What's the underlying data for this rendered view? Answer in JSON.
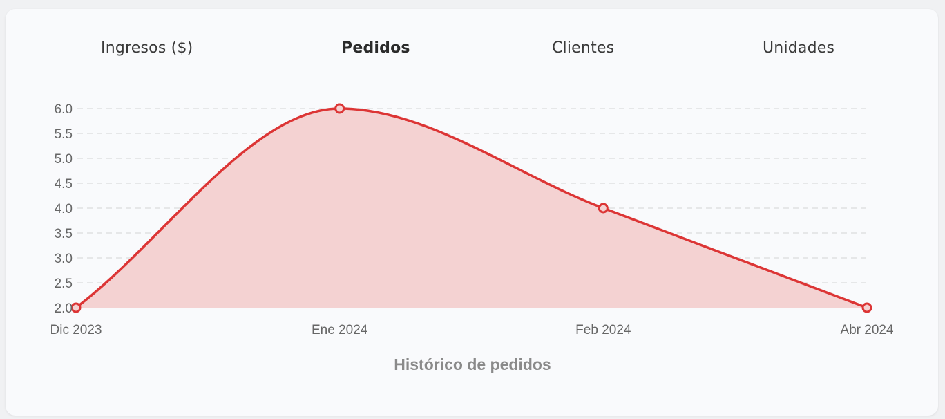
{
  "tabs": [
    {
      "label": "Ingresos ($)",
      "active": false
    },
    {
      "label": "Pedidos",
      "active": true
    },
    {
      "label": "Clientes",
      "active": false
    },
    {
      "label": "Unidades",
      "active": false
    }
  ],
  "colors": {
    "line": "#dc3535",
    "fill": "#f4d2d2",
    "grid": "#dcdcdc",
    "card": "#f9fafc"
  },
  "chart_data": {
    "type": "area",
    "title": "Histórico de pedidos",
    "categories": [
      "Dic 2023",
      "Ene 2024",
      "Feb 2024",
      "Abr 2024"
    ],
    "values": [
      2,
      6,
      4,
      2
    ],
    "yticks": [
      "2.0",
      "2.5",
      "3.0",
      "3.5",
      "4.0",
      "4.5",
      "5.0",
      "5.5",
      "6.0"
    ],
    "ylim": [
      2,
      6
    ],
    "grid": true,
    "legend": false,
    "curve": "smooth"
  }
}
